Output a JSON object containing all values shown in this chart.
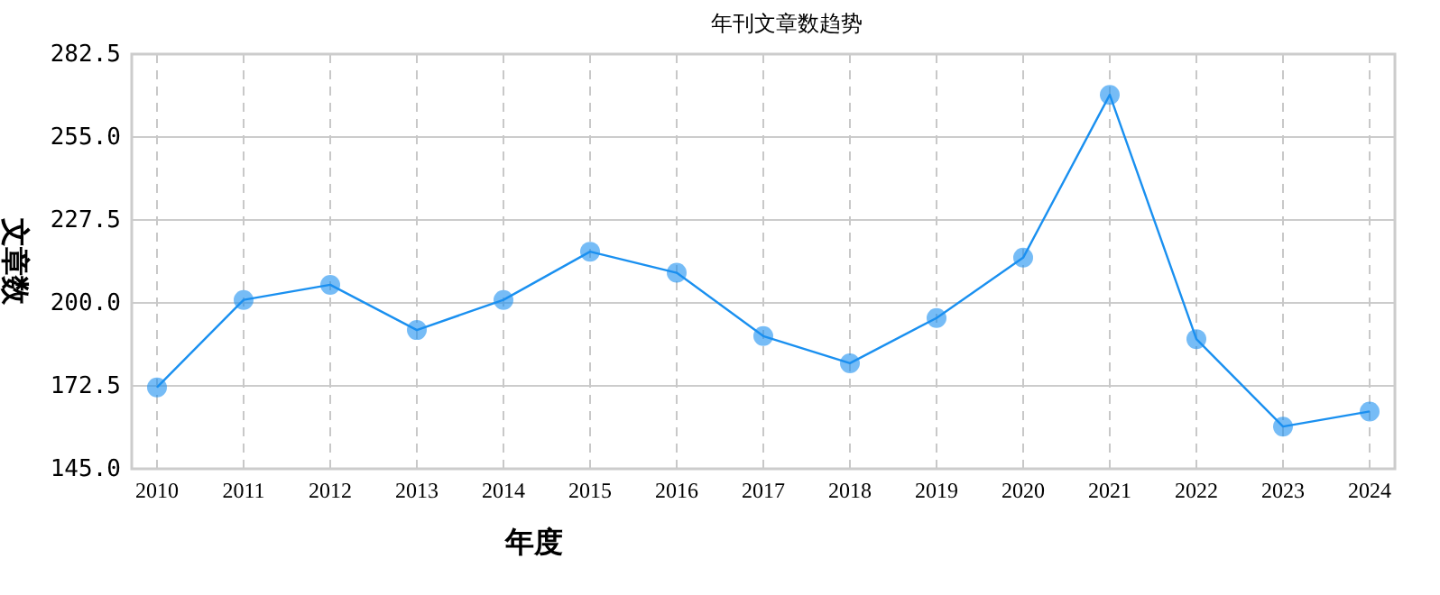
{
  "chart_data": {
    "type": "line",
    "title": "年刊文章数趋势",
    "xlabel": "年度",
    "ylabel": "文章数",
    "categories": [
      "2010",
      "2011",
      "2012",
      "2013",
      "2014",
      "2015",
      "2016",
      "2017",
      "2018",
      "2019",
      "2020",
      "2021",
      "2022",
      "2023",
      "2024"
    ],
    "series": [
      {
        "color": "#1a90f0",
        "values": [
          172,
          201,
          206,
          191,
          201,
          217,
          210,
          189,
          180,
          195,
          215,
          269,
          188,
          159,
          164
        ]
      }
    ],
    "ylim": [
      145,
      282.5
    ],
    "yticks": [
      {
        "value": 145,
        "label": "145.0"
      },
      {
        "value": 172.5,
        "label": "172.5"
      },
      {
        "value": 200,
        "label": "200.0"
      },
      {
        "value": 227.5,
        "label": "227.5"
      },
      {
        "value": 255,
        "label": "255.0"
      },
      {
        "value": 282.5,
        "label": "282.5"
      }
    ],
    "grid": true,
    "marker": "circle",
    "line_style": "solid"
  }
}
